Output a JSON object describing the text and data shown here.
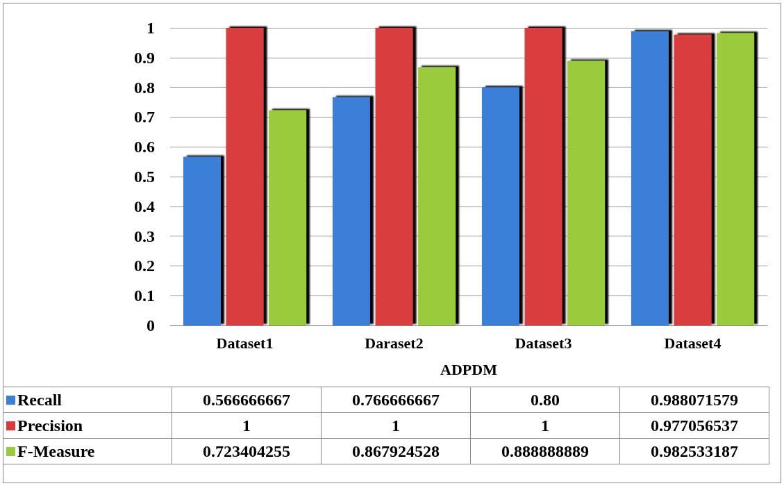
{
  "chart_data": {
    "type": "bar",
    "categories": [
      "Dataset1",
      "Daraset2",
      "Dataset3",
      "Dataset4"
    ],
    "xlabel": "ADPDM",
    "series": [
      {
        "name": "Recall",
        "color": "#3b7fd9",
        "values": [
          0.566666667,
          0.766666667,
          0.8,
          0.988071579
        ],
        "value_labels": [
          "0.566666667",
          "0.766666667",
          "0.80",
          "0.988071579"
        ]
      },
      {
        "name": "Precision",
        "color": "#d93c3c",
        "values": [
          1,
          1,
          1,
          0.977056537
        ],
        "value_labels": [
          "1",
          "1",
          "1",
          "0.977056537"
        ]
      },
      {
        "name": "F-Measure",
        "color": "#9acb3e",
        "values": [
          0.723404255,
          0.867924528,
          0.888888889,
          0.982533187
        ],
        "value_labels": [
          "0.723404255",
          "0.867924528",
          "0.888888889",
          "0.982533187"
        ]
      }
    ],
    "ylim": [
      0,
      1
    ],
    "yticks": [
      0,
      0.1,
      0.2,
      0.3,
      0.4,
      0.5,
      0.6,
      0.7,
      0.8,
      0.9,
      1
    ],
    "grid": "y",
    "legend": "bottom left"
  }
}
